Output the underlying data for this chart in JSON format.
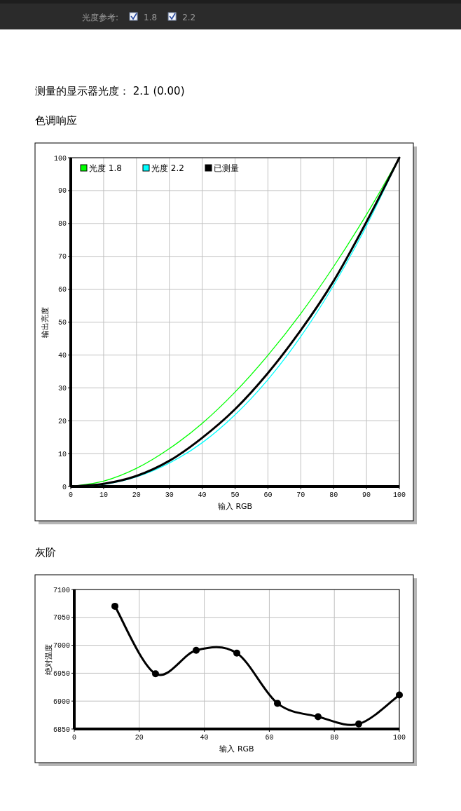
{
  "chart_data": [
    {
      "type": "line",
      "title": "色调响应",
      "subtitle": "测量的显示器光度：  2.1 (0.00)",
      "annotations": [
        "光度参考:",
        "1.8",
        "2.2"
      ],
      "xlabel": "输入 RGB",
      "ylabel": "输出亮度",
      "xlim": [
        0,
        100
      ],
      "ylim": [
        0,
        100
      ],
      "xticks": [
        0,
        10,
        20,
        30,
        40,
        50,
        60,
        70,
        80,
        90,
        100
      ],
      "yticks": [
        0,
        10,
        20,
        30,
        40,
        50,
        60,
        70,
        80,
        90,
        100
      ],
      "grid": true,
      "legend": "top left",
      "marker": "none",
      "line_style": "solid",
      "x": [
        0,
        10,
        20,
        30,
        40,
        50,
        60,
        70,
        80,
        90,
        100
      ],
      "series": [
        {
          "name": "光度 1.8",
          "color": "#00ff00",
          "values": [
            0,
            1.6,
            5.5,
            11.5,
            19.2,
            28.7,
            39.9,
            52.6,
            66.9,
            82.7,
            100
          ]
        },
        {
          "name": "光度 2.2",
          "color": "#00ffff",
          "values": [
            0,
            0.6,
            2.9,
            7.1,
            13.3,
            21.8,
            32.5,
            45.6,
            61.2,
            79.3,
            100
          ]
        },
        {
          "name": "已测量",
          "color": "#000000",
          "values": [
            0,
            0.8,
            3.2,
            7.8,
            14.8,
            23.5,
            34.5,
            47.5,
            62.5,
            80.5,
            100
          ]
        }
      ]
    },
    {
      "type": "line",
      "title": "灰阶",
      "xlabel": "输入 RGB",
      "ylabel": "绝对温度",
      "xlim": [
        0,
        100
      ],
      "ylim": [
        6850,
        7100
      ],
      "xticks": [
        0,
        20,
        40,
        60,
        80,
        100
      ],
      "yticks": [
        6850,
        6900,
        6950,
        7000,
        7050,
        7100
      ],
      "grid": true,
      "marker": "circle",
      "line_style": "solid",
      "x": [
        12.5,
        25,
        37.5,
        50,
        62.5,
        75,
        87.5,
        100
      ],
      "series": [
        {
          "color": "#000000",
          "values": [
            7070,
            6949,
            6991,
            6986,
            6896,
            6872,
            6859,
            6911
          ]
        }
      ]
    }
  ]
}
